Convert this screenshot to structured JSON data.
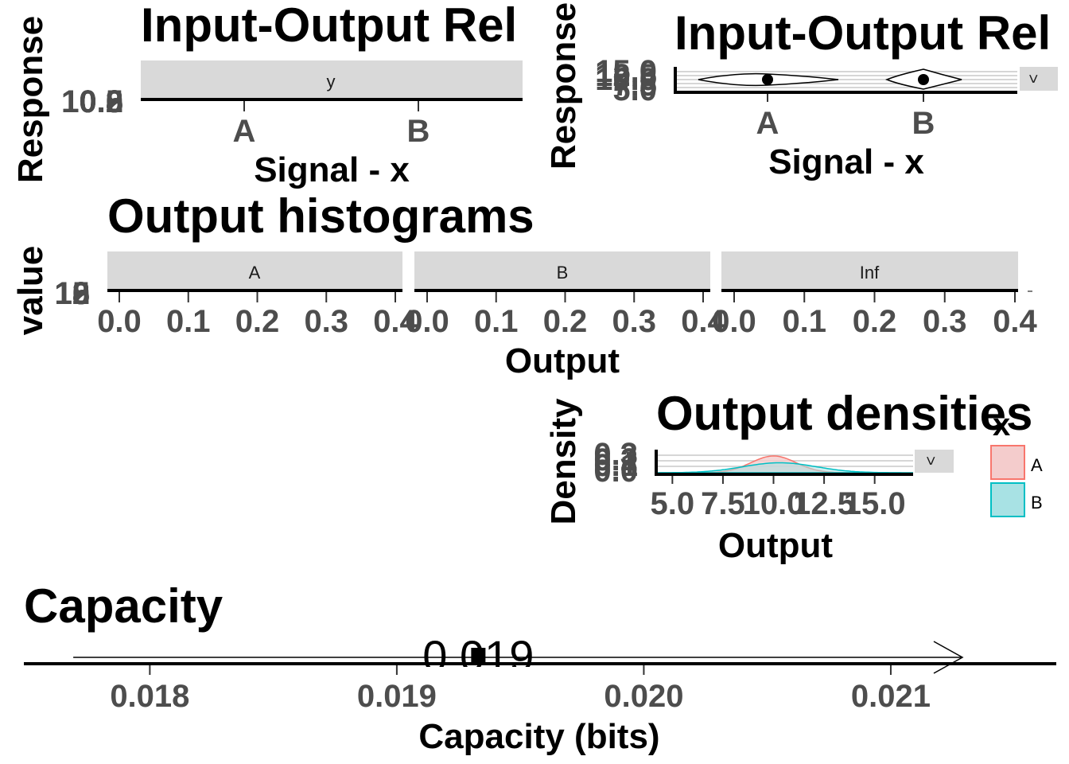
{
  "colors": {
    "strip": "#d9d9d9",
    "tick_text": "#4d4d4d",
    "series_A": "#F8766D",
    "series_B": "#00BFC4",
    "fill_A": "#F4CCCC",
    "fill_B": "#A8E2E4"
  },
  "chart_data": [
    {
      "type": "violin",
      "title": "Input-Output Rel",
      "xlabel": "Signal - x",
      "ylabel": "Response",
      "facet_label": "y",
      "categories": [
        "A",
        "B"
      ],
      "ytick_labels": [
        "10.8",
        "10.5",
        "10.2",
        "10.0"
      ]
    },
    {
      "type": "violin",
      "title": "Input-Output Rel",
      "xlabel": "Signal - x",
      "ylabel": "Response",
      "facet_label": "<",
      "categories": [
        "A",
        "B"
      ],
      "ytick_labels": [
        "15.0",
        "12.5",
        "10.0",
        "7.5",
        "5.0"
      ],
      "series": [
        {
          "name": "A",
          "median": 10.0
        },
        {
          "name": "B",
          "median": 10.0
        }
      ]
    },
    {
      "type": "bar",
      "title": "Output histograms",
      "xlabel": "Output",
      "ylabel": "value",
      "facets": [
        "A",
        "B",
        "Inf"
      ],
      "xtick_labels": [
        "0.0",
        "0.1",
        "0.2",
        "0.3",
        "0.4"
      ],
      "xlim": [
        0,
        0.4
      ],
      "ytick_labels": [
        "12",
        "15",
        "18",
        "10"
      ]
    },
    {
      "type": "area",
      "title": "Output densities",
      "xlabel": "Output",
      "ylabel": "Density",
      "facet_label": "<",
      "xtick_labels": [
        "5.0",
        "7.5",
        "10.0",
        "12.5",
        "15.0"
      ],
      "xlim": [
        4.2,
        16.9
      ],
      "ytick_labels": [
        "0.3",
        "0.2",
        "0.1",
        "0.0"
      ],
      "legend": {
        "title": "x",
        "entries": [
          "A",
          "B"
        ],
        "placement": "right"
      },
      "series": [
        {
          "name": "A",
          "mean": 10.0,
          "sd": 1.1,
          "peak": 0.37
        },
        {
          "name": "B",
          "mean": 10.3,
          "sd": 1.8,
          "peak": 0.22
        }
      ]
    },
    {
      "type": "scatter",
      "title": "Capacity",
      "xlabel": "Capacity (bits)",
      "xtick_labels": [
        "0.018",
        "0.019",
        "0.020",
        "0.021"
      ],
      "xticks": [
        0.018,
        0.019,
        0.02,
        0.021
      ],
      "xlim": [
        0.01749,
        0.02167
      ],
      "point": {
        "value": 0.01933,
        "label": "0.019"
      },
      "arrow_range": [
        0.01769,
        0.02129
      ]
    }
  ]
}
